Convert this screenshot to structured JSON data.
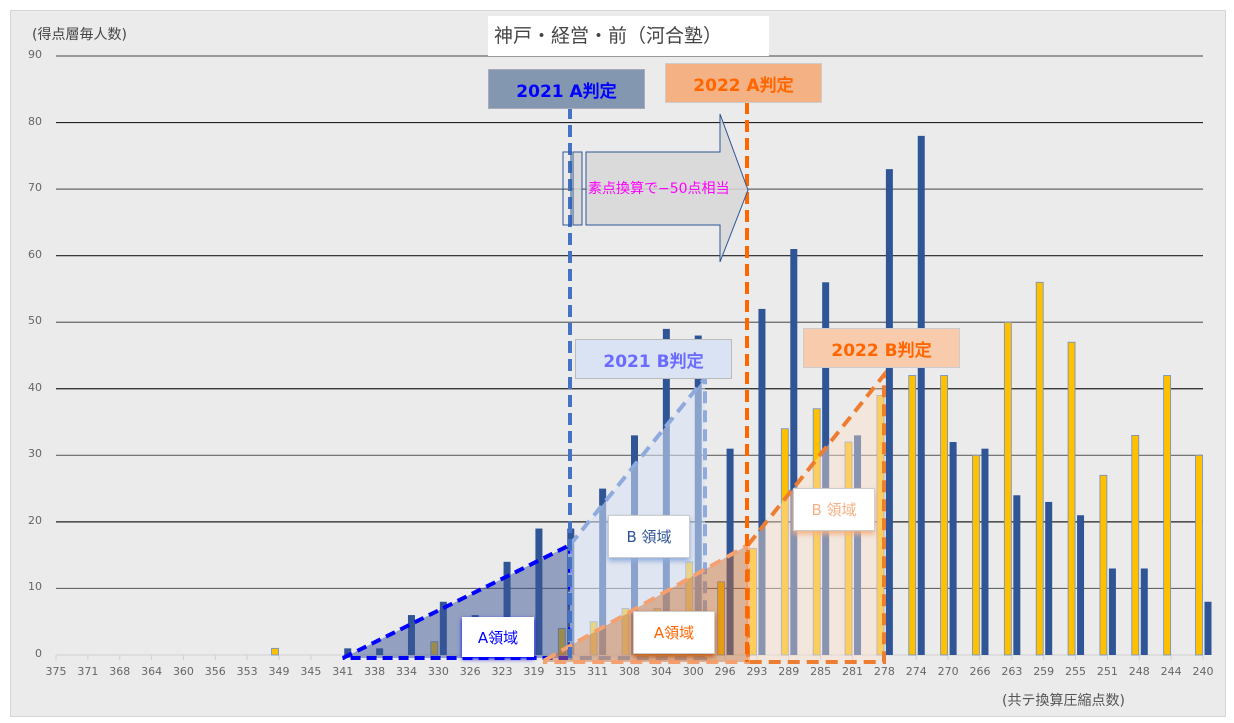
{
  "chart_data": {
    "type": "bar",
    "title": "神戸・経営・前（河合塾）",
    "ylabel": "(得点層毎人数)",
    "xlabel": "(共テ換算圧縮点数)",
    "ylim": [
      0,
      90
    ],
    "yticks": [
      0,
      10,
      20,
      30,
      40,
      50,
      60,
      70,
      80,
      90
    ],
    "grid": true,
    "categories": [
      "375",
      "371",
      "368",
      "364",
      "360",
      "356",
      "353",
      "349",
      "345",
      "341",
      "338",
      "334",
      "330",
      "326",
      "323",
      "319",
      "315",
      "311",
      "308",
      "304",
      "300",
      "296",
      "293",
      "289",
      "285",
      "281",
      "278",
      "274",
      "270",
      "266",
      "263",
      "259",
      "255",
      "251",
      "248",
      "244",
      "240"
    ],
    "series": [
      {
        "name": "2022",
        "color": "#ffc000",
        "values": [
          0,
          0,
          0,
          0,
          0,
          0,
          0,
          1,
          0,
          0,
          0,
          0,
          2,
          0,
          0,
          0,
          4,
          5,
          7,
          7,
          14,
          11,
          16,
          34,
          37,
          32,
          39,
          42,
          42,
          30,
          50,
          56,
          47,
          27,
          33,
          42,
          30
        ]
      },
      {
        "name": "2021",
        "color": "#2f5597",
        "values": [
          0,
          0,
          0,
          0,
          0,
          0,
          0,
          0,
          0,
          1,
          1,
          6,
          8,
          6,
          14,
          19,
          19,
          25,
          33,
          49,
          48,
          31,
          52,
          61,
          56,
          33,
          73,
          78,
          32,
          31,
          24,
          23,
          21,
          13,
          13,
          0,
          8
        ]
      }
    ],
    "annotations": {
      "a2021": "2021 A判定",
      "a2022": "2022 A判定",
      "b2021": "2021 B判定",
      "b2022": "2022 B判定",
      "arrow_text": "素点換算で−50点相当",
      "region_a_2021": "A領域",
      "region_b_2021": "B 領域",
      "region_a_2022": "A領域",
      "region_b_2022": "B 領域"
    },
    "colors": {
      "blue_line": "#4472c4",
      "orange_line": "#ff6600",
      "magenta": "#ff00ff"
    }
  }
}
